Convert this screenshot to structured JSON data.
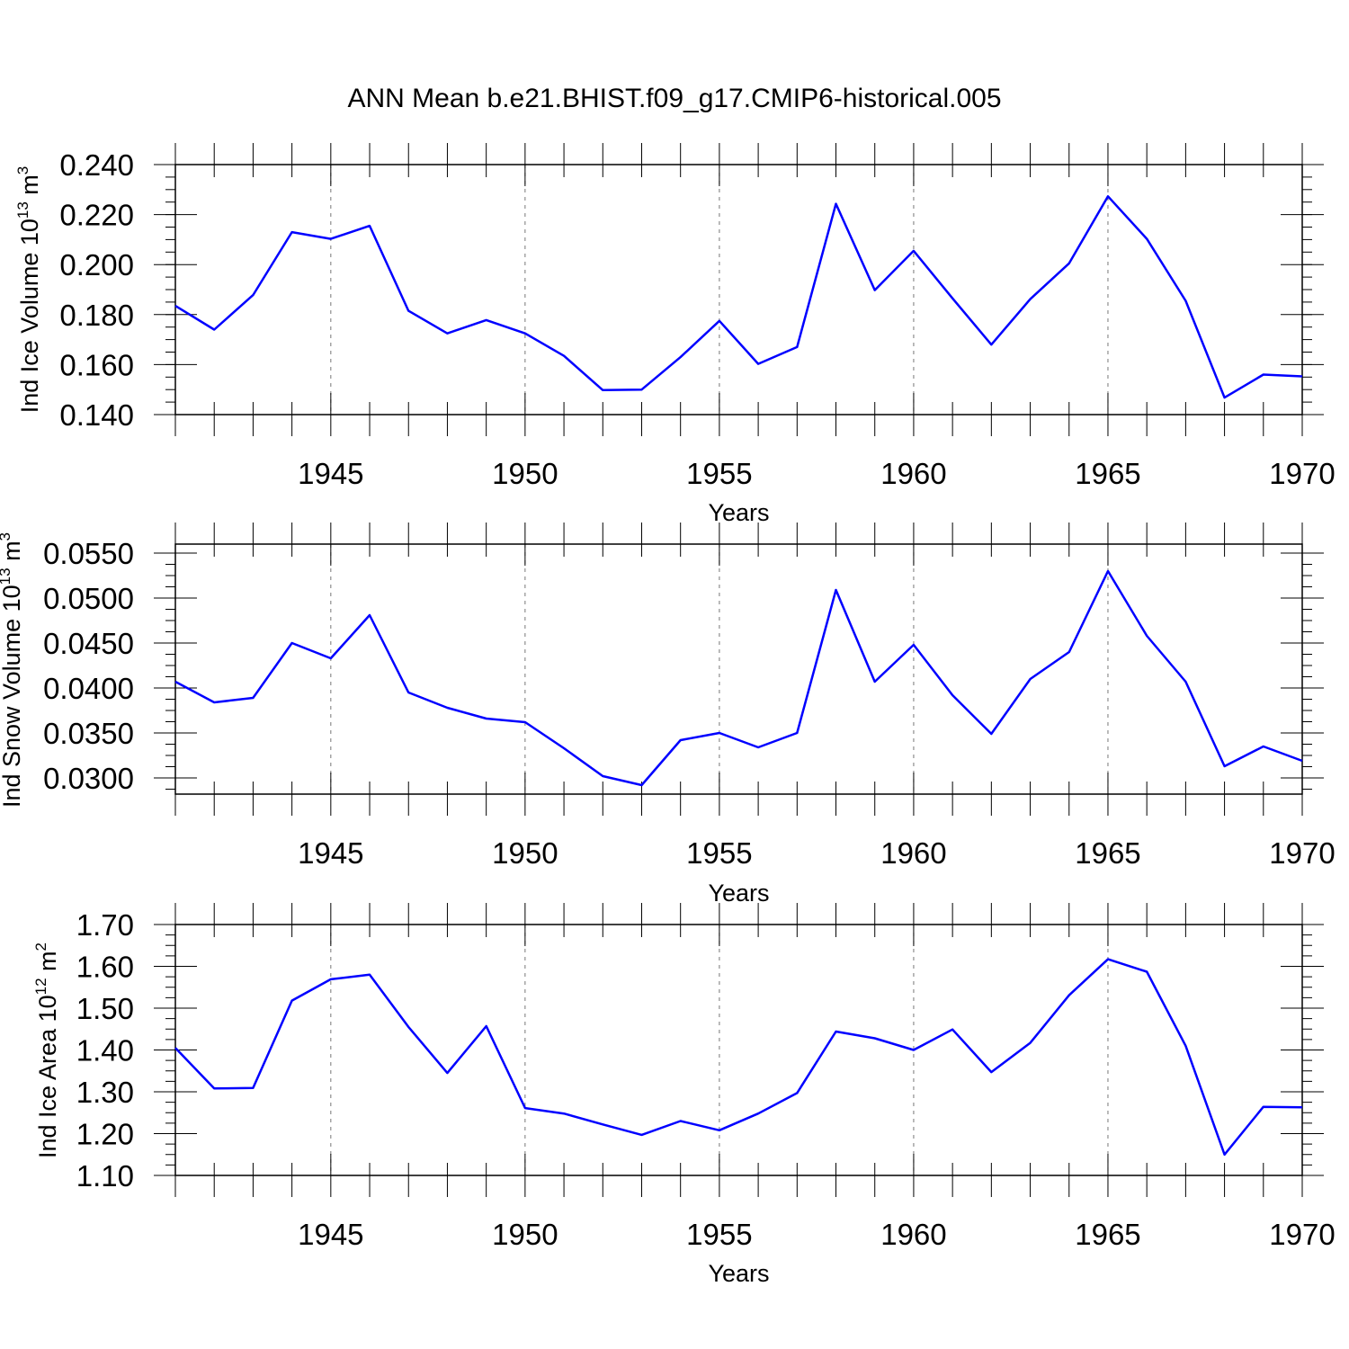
{
  "title": "ANN Mean b.e21.BHIST.f09_g17.CMIP6-historical.005",
  "colors": {
    "series": "#0000ff",
    "axis": "#000000",
    "grid": "#777777"
  },
  "chart_data": [
    {
      "type": "line",
      "ylabel_main": "Ind Ice Volume 10",
      "ylabel_sup": "13",
      "ylabel_unit": " m",
      "ylabel_unit_sup": "3",
      "xlabel": "Years",
      "xlim": [
        1941,
        1970
      ],
      "ylim": [
        0.14,
        0.24
      ],
      "yticks": [
        "0.140",
        "0.160",
        "0.180",
        "0.200",
        "0.220",
        "0.240"
      ],
      "xticks": [
        "1945",
        "1950",
        "1955",
        "1960",
        "1965",
        "1970"
      ],
      "x": [
        1941,
        1942,
        1943,
        1944,
        1945,
        1946,
        1947,
        1948,
        1949,
        1950,
        1951,
        1952,
        1953,
        1954,
        1955,
        1956,
        1957,
        1958,
        1959,
        1960,
        1961,
        1962,
        1963,
        1964,
        1965,
        1966,
        1967,
        1968,
        1969,
        1970
      ],
      "values": [
        0.1835,
        0.174,
        0.1878,
        0.213,
        0.2103,
        0.2155,
        0.1815,
        0.1725,
        0.1778,
        0.1725,
        0.1635,
        0.1498,
        0.15,
        0.163,
        0.1775,
        0.1603,
        0.167,
        0.2243,
        0.1898,
        0.2055,
        0.1865,
        0.168,
        0.1862,
        0.2005,
        0.2273,
        0.2103,
        0.1855,
        0.1468,
        0.156,
        0.1553
      ]
    },
    {
      "type": "line",
      "ylabel_main": "Ind Snow Volume 10",
      "ylabel_sup": "13",
      "ylabel_unit": " m",
      "ylabel_unit_sup": "3",
      "xlabel": "Years",
      "xlim": [
        1941,
        1970
      ],
      "ylim": [
        0.0282,
        0.056
      ],
      "yticks": [
        "0.0300",
        "0.0350",
        "0.0400",
        "0.0450",
        "0.0500",
        "0.0550"
      ],
      "xticks": [
        "1945",
        "1950",
        "1955",
        "1960",
        "1965",
        "1970"
      ],
      "x": [
        1941,
        1942,
        1943,
        1944,
        1945,
        1946,
        1947,
        1948,
        1949,
        1950,
        1951,
        1952,
        1953,
        1954,
        1955,
        1956,
        1957,
        1958,
        1959,
        1960,
        1961,
        1962,
        1963,
        1964,
        1965,
        1966,
        1967,
        1968,
        1969,
        1970
      ],
      "values": [
        0.0407,
        0.0384,
        0.0389,
        0.045,
        0.0433,
        0.0481,
        0.0395,
        0.0378,
        0.0366,
        0.0362,
        0.0333,
        0.0302,
        0.0292,
        0.0342,
        0.035,
        0.0334,
        0.035,
        0.0509,
        0.0407,
        0.0448,
        0.0392,
        0.0349,
        0.041,
        0.044,
        0.053,
        0.0458,
        0.0407,
        0.0313,
        0.0335,
        0.0319
      ]
    },
    {
      "type": "line",
      "ylabel_main": "Ind Ice Area 10",
      "ylabel_sup": "12",
      "ylabel_unit": " m",
      "ylabel_unit_sup": "2",
      "xlabel": "Years",
      "xlim": [
        1941,
        1970
      ],
      "ylim": [
        1.1,
        1.7
      ],
      "yticks": [
        "1.10",
        "1.20",
        "1.30",
        "1.40",
        "1.50",
        "1.60",
        "1.70"
      ],
      "xticks": [
        "1945",
        "1950",
        "1955",
        "1960",
        "1965",
        "1970"
      ],
      "x": [
        1941,
        1942,
        1943,
        1944,
        1945,
        1946,
        1947,
        1948,
        1949,
        1950,
        1951,
        1952,
        1953,
        1954,
        1955,
        1956,
        1957,
        1958,
        1959,
        1960,
        1961,
        1962,
        1963,
        1964,
        1965,
        1966,
        1967,
        1968,
        1969,
        1970
      ],
      "values": [
        1.405,
        1.308,
        1.309,
        1.518,
        1.569,
        1.58,
        1.455,
        1.345,
        1.457,
        1.261,
        1.248,
        1.222,
        1.197,
        1.23,
        1.208,
        1.248,
        1.297,
        1.444,
        1.428,
        1.4,
        1.449,
        1.347,
        1.417,
        1.531,
        1.617,
        1.587,
        1.41,
        1.15,
        1.264,
        1.263
      ]
    }
  ]
}
